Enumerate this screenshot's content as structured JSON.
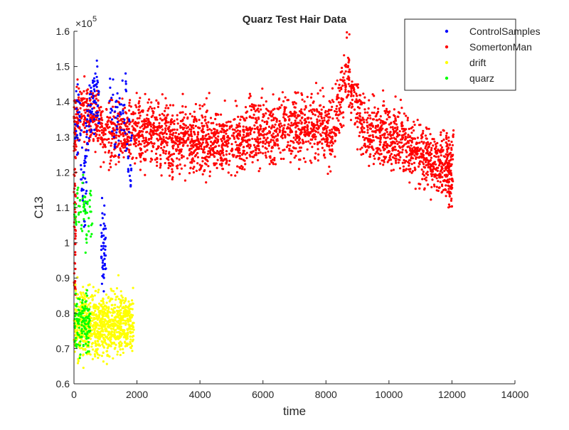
{
  "chart_data": {
    "type": "scatter",
    "title": "Quarz Test Hair Data",
    "xlabel": "time",
    "ylabel": "C13",
    "y_multiplier_label": "×10",
    "y_multiplier_exponent": "5",
    "xlim": [
      0,
      14000
    ],
    "ylim": [
      0.6,
      1.6
    ],
    "y_scale_factor": 100000,
    "x_ticks": [
      0,
      2000,
      4000,
      6000,
      8000,
      10000,
      12000,
      14000
    ],
    "x_tick_labels": [
      "0",
      "2000",
      "4000",
      "6000",
      "8000",
      "10000",
      "12000",
      "14000"
    ],
    "y_ticks": [
      0.6,
      0.7,
      0.8,
      0.9,
      1.0,
      1.1,
      1.2,
      1.3,
      1.4,
      1.5,
      1.6
    ],
    "y_tick_labels": [
      "0.6",
      "0.7",
      "0.8",
      "0.9",
      "1",
      "1.1",
      "1.2",
      "1.3",
      "1.4",
      "1.5",
      "1.6"
    ],
    "grid": false,
    "legend_position": "top-right",
    "series": [
      {
        "name": "ControlSamples",
        "color": "#0000ff",
        "marker": "dot",
        "points": [
          [
            60,
            1.3
          ],
          [
            80,
            1.38
          ],
          [
            100,
            1.25
          ],
          [
            120,
            1.33
          ],
          [
            140,
            1.42
          ],
          [
            160,
            1.29
          ],
          [
            180,
            1.36
          ],
          [
            200,
            1.31
          ],
          [
            220,
            1.22
          ],
          [
            240,
            1.18
          ],
          [
            260,
            1.27
          ],
          [
            280,
            1.12
          ],
          [
            300,
            1.15
          ],
          [
            320,
            1.2
          ],
          [
            340,
            1.09
          ],
          [
            360,
            1.24
          ],
          [
            380,
            1.14
          ],
          [
            400,
            1.3
          ],
          [
            420,
            1.35
          ],
          [
            440,
            1.28
          ],
          [
            460,
            1.39
          ],
          [
            480,
            1.33
          ],
          [
            500,
            1.41
          ],
          [
            520,
            1.37
          ],
          [
            540,
            1.44
          ],
          [
            560,
            1.32
          ],
          [
            580,
            1.38
          ],
          [
            600,
            1.46
          ],
          [
            620,
            1.4
          ],
          [
            640,
            1.35
          ],
          [
            660,
            1.43
          ],
          [
            680,
            1.48
          ],
          [
            700,
            1.36
          ],
          [
            720,
            1.45
          ],
          [
            740,
            1.5
          ],
          [
            760,
            1.39
          ],
          [
            780,
            1.42
          ],
          [
            800,
            1.34
          ],
          [
            850,
            1.05
          ],
          [
            870,
            0.98
          ],
          [
            890,
            1.02
          ],
          [
            900,
            0.93
          ],
          [
            910,
            1.07
          ],
          [
            920,
            0.95
          ],
          [
            930,
            1.0
          ],
          [
            940,
            0.91
          ],
          [
            950,
            1.04
          ],
          [
            960,
            0.97
          ],
          [
            970,
            1.08
          ],
          [
            980,
            0.94
          ],
          [
            990,
            1.01
          ],
          [
            1000,
            0.99
          ],
          [
            1150,
            1.44
          ],
          [
            1180,
            1.38
          ],
          [
            1210,
            1.35
          ],
          [
            1240,
            1.42
          ],
          [
            1270,
            1.3
          ],
          [
            1300,
            1.27
          ],
          [
            1330,
            1.4
          ],
          [
            1360,
            1.33
          ],
          [
            1390,
            1.36
          ],
          [
            1420,
            1.29
          ],
          [
            1450,
            1.41
          ],
          [
            1480,
            1.37
          ],
          [
            1510,
            1.32
          ],
          [
            1540,
            1.46
          ],
          [
            1570,
            1.39
          ],
          [
            1600,
            1.34
          ],
          [
            1630,
            1.31
          ],
          [
            1660,
            1.43
          ],
          [
            1690,
            1.28
          ],
          [
            1720,
            1.24
          ],
          [
            1750,
            1.35
          ],
          [
            1770,
            1.19
          ],
          [
            1790,
            1.22
          ],
          [
            1800,
            1.16
          ],
          [
            1810,
            1.29
          ],
          [
            1820,
            1.21
          ]
        ]
      },
      {
        "name": "SomertonMan",
        "color": "#ff0000",
        "marker": "dot",
        "density": "dense band from x=0 to x=12000 centred near 1.30, with a peak near x=8700 at about 1.45 and a decline towards 1.20 at x=12000"
      },
      {
        "name": "drift",
        "color": "#ffff00",
        "marker": "dot",
        "density": "dense cluster from x=0 to x=1900 between 0.65 and 0.90"
      },
      {
        "name": "quarz",
        "color": "#00ff00",
        "marker": "dot",
        "points": [
          [
            20,
            0.76
          ],
          [
            40,
            0.8
          ],
          [
            60,
            0.73
          ],
          [
            80,
            0.82
          ],
          [
            100,
            0.78
          ],
          [
            120,
            0.74
          ],
          [
            140,
            0.81
          ],
          [
            160,
            0.77
          ],
          [
            180,
            0.84
          ],
          [
            200,
            0.72
          ],
          [
            220,
            0.79
          ],
          [
            240,
            0.75
          ],
          [
            260,
            0.83
          ],
          [
            280,
            0.8
          ],
          [
            300,
            0.71
          ],
          [
            320,
            0.78
          ],
          [
            340,
            0.76
          ],
          [
            360,
            0.82
          ],
          [
            380,
            0.74
          ],
          [
            400,
            0.79
          ],
          [
            420,
            0.85
          ],
          [
            440,
            0.77
          ],
          [
            460,
            0.73
          ],
          [
            480,
            0.81
          ],
          [
            500,
            0.78
          ],
          [
            30,
            1.1
          ],
          [
            70,
            1.06
          ],
          [
            110,
            1.15
          ],
          [
            150,
            1.08
          ],
          [
            190,
            1.12
          ],
          [
            230,
            1.04
          ],
          [
            270,
            1.17
          ],
          [
            310,
            1.09
          ],
          [
            350,
            1.13
          ],
          [
            390,
            1.01
          ],
          [
            430,
            1.11
          ],
          [
            470,
            1.07
          ],
          [
            510,
            1.14
          ],
          [
            550,
            1.05
          ]
        ]
      }
    ]
  }
}
